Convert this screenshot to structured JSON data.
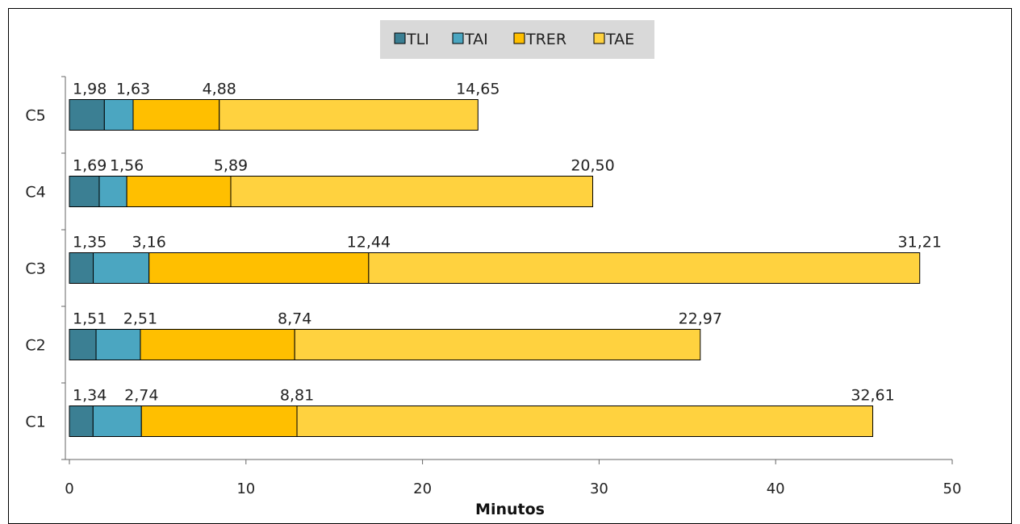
{
  "chart_data": {
    "type": "bar",
    "orientation": "horizontal",
    "stacked": true,
    "categories": [
      "C1",
      "C2",
      "C3",
      "C4",
      "C5"
    ],
    "series": [
      {
        "name": "TLI",
        "color": "#3b7f93",
        "values": [
          1.34,
          1.51,
          1.35,
          1.69,
          1.98
        ],
        "labels": [
          "1,34",
          "1,51",
          "1,35",
          "1,69",
          "1,98"
        ]
      },
      {
        "name": "TAI",
        "color": "#4ba6c1",
        "values": [
          2.74,
          2.51,
          3.16,
          1.56,
          1.63
        ],
        "labels": [
          "2,74",
          "2,51",
          "3,16",
          "1,56",
          "1,63"
        ]
      },
      {
        "name": "TRER",
        "color": "#ffbf00",
        "values": [
          8.81,
          8.74,
          12.44,
          5.89,
          4.88
        ],
        "labels": [
          "8,81",
          "8,74",
          "12,44",
          "5,89",
          "4,88"
        ]
      },
      {
        "name": "TAE",
        "color": "#ffd23f",
        "values": [
          32.61,
          22.97,
          31.21,
          20.5,
          14.65
        ],
        "labels": [
          "32,61",
          "22,97",
          "31,21",
          "20,50",
          "14,65"
        ]
      }
    ],
    "xlabel": "Minutos",
    "xlim": [
      0,
      50
    ],
    "xticks": [
      0,
      10,
      20,
      30,
      40,
      50
    ],
    "legend": {
      "position": "top-center",
      "background": "#d9d9d9"
    },
    "grid": false
  }
}
